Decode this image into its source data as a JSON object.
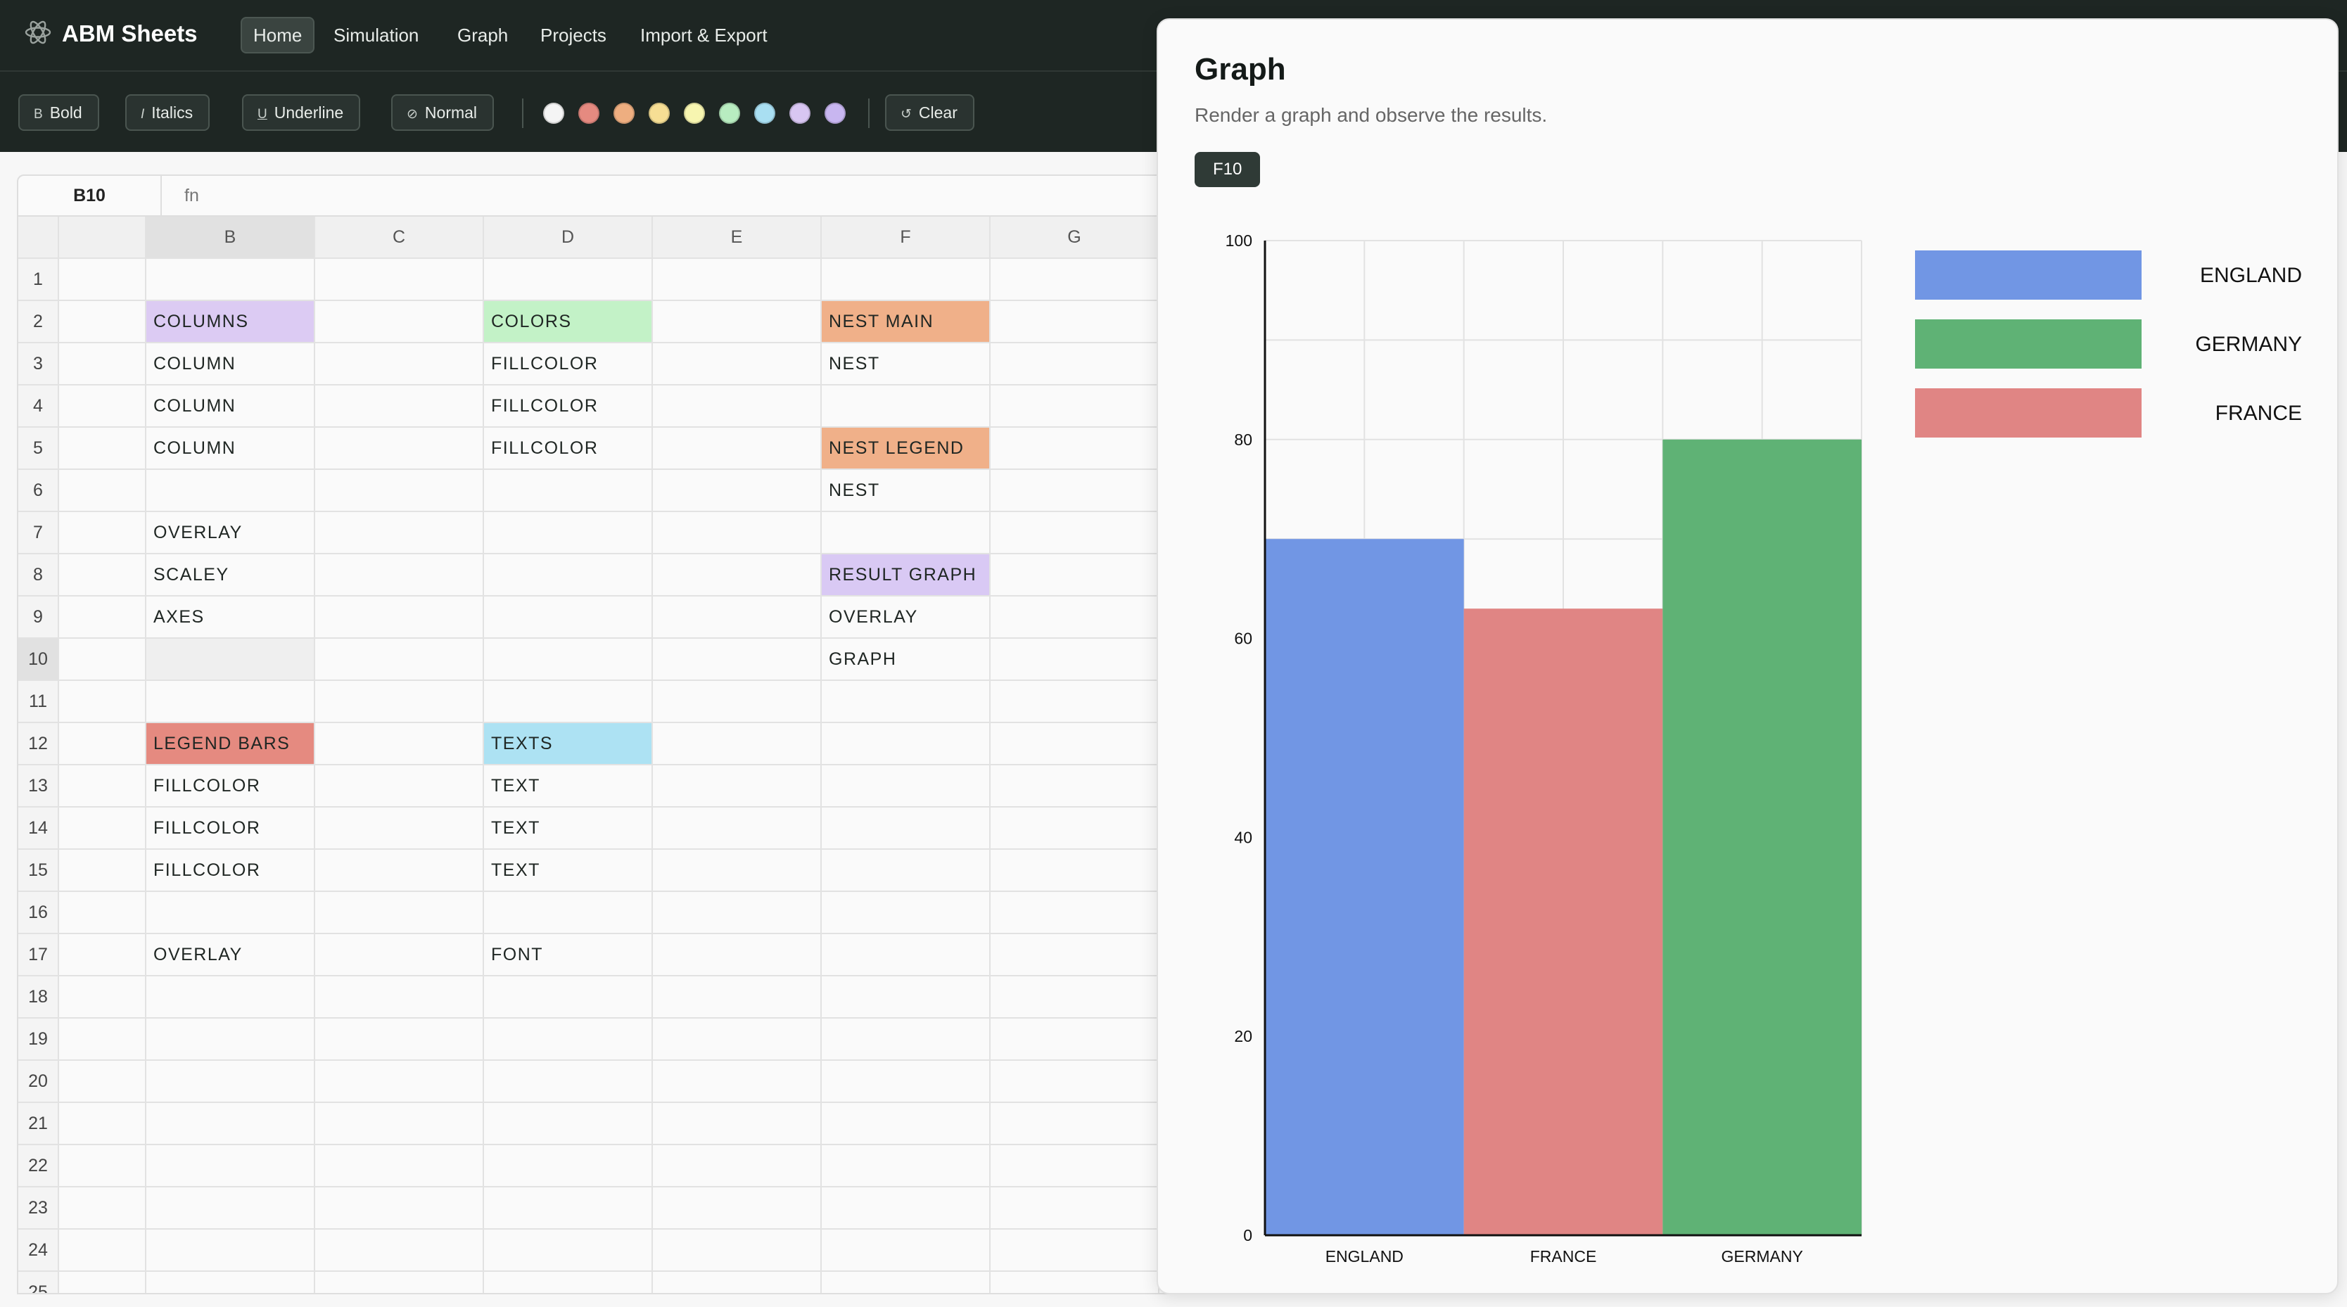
{
  "app": {
    "title": "ABM Sheets"
  },
  "nav": {
    "items": [
      {
        "label": "Home",
        "active": true
      },
      {
        "label": "Simulation",
        "active": false
      },
      {
        "label": "Graph",
        "active": false
      },
      {
        "label": "Projects",
        "active": false
      },
      {
        "label": "Import & Export",
        "active": false
      }
    ]
  },
  "toolbar": {
    "bold": "Bold",
    "italics": "Italics",
    "underline": "Underline",
    "normal": "Normal",
    "clear": "Clear",
    "swatches": [
      "#f4f4f4",
      "#e58a80",
      "#eeae80",
      "#f6de94",
      "#f7f5b0",
      "#b8ecc0",
      "#a9dff2",
      "#d8c6f2",
      "#c8b6f0"
    ]
  },
  "formula": {
    "cell": "B10",
    "fx": "fn"
  },
  "grid": {
    "columns": [
      "",
      "B",
      "C",
      "D",
      "E",
      "F",
      "G"
    ],
    "rows": [
      {
        "n": "1",
        "B": "",
        "D": "",
        "F": ""
      },
      {
        "n": "2",
        "B": "COLUMNS",
        "D": "COLORS",
        "F": "NEST MAIN"
      },
      {
        "n": "3",
        "B": "COLUMN",
        "D": "FILLCOLOR",
        "F": "NEST"
      },
      {
        "n": "4",
        "B": "COLUMN",
        "D": "FILLCOLOR",
        "F": ""
      },
      {
        "n": "5",
        "B": "COLUMN",
        "D": "FILLCOLOR",
        "F": "NEST LEGEND"
      },
      {
        "n": "6",
        "B": "",
        "D": "",
        "F": "NEST"
      },
      {
        "n": "7",
        "B": "OVERLAY",
        "D": "",
        "F": ""
      },
      {
        "n": "8",
        "B": "SCALEY",
        "D": "",
        "F": "RESULT GRAPH"
      },
      {
        "n": "9",
        "B": "AXES",
        "D": "",
        "F": "OVERLAY"
      },
      {
        "n": "10",
        "B": "",
        "D": "",
        "F": "GRAPH"
      },
      {
        "n": "11",
        "B": "",
        "D": "",
        "F": ""
      },
      {
        "n": "12",
        "B": "LEGEND BARS",
        "D": "TEXTS",
        "F": ""
      },
      {
        "n": "13",
        "B": "FILLCOLOR",
        "D": "TEXT",
        "F": ""
      },
      {
        "n": "14",
        "B": "FILLCOLOR",
        "D": "TEXT",
        "F": ""
      },
      {
        "n": "15",
        "B": "FILLCOLOR",
        "D": "TEXT",
        "F": ""
      },
      {
        "n": "16",
        "B": "",
        "D": "",
        "F": ""
      },
      {
        "n": "17",
        "B": "OVERLAY",
        "D": "FONT",
        "F": ""
      },
      {
        "n": "18",
        "B": "",
        "D": "",
        "F": ""
      },
      {
        "n": "19",
        "B": "",
        "D": "",
        "F": ""
      },
      {
        "n": "20",
        "B": "",
        "D": "",
        "F": ""
      },
      {
        "n": "21",
        "B": "",
        "D": "",
        "F": ""
      },
      {
        "n": "22",
        "B": "",
        "D": "",
        "F": ""
      },
      {
        "n": "23",
        "B": "",
        "D": "",
        "F": ""
      },
      {
        "n": "24",
        "B": "",
        "D": "",
        "F": ""
      },
      {
        "n": "25",
        "B": "",
        "D": "",
        "F": ""
      }
    ],
    "highlights": {
      "B2": "#dccbf3",
      "D2": "#c3f2c7",
      "F2": "#f0b089",
      "F5": "#f0b089",
      "F8": "#d9c9f4",
      "B12": "#e58a80",
      "D12": "#ade2f3"
    }
  },
  "panel": {
    "title": "Graph",
    "subtitle": "Render a graph and observe the results.",
    "cell_badge": "F10"
  },
  "chart_data": {
    "type": "bar",
    "categories": [
      "ENGLAND",
      "FRANCE",
      "GERMANY"
    ],
    "values": [
      70,
      63,
      80
    ],
    "colors": [
      "#7196e4",
      "#e08584",
      "#5fb275"
    ],
    "ylim": [
      0,
      100
    ],
    "yticks": [
      0,
      20,
      40,
      60,
      80,
      100
    ],
    "grid": true,
    "legend": {
      "placement": "right",
      "entries": [
        {
          "label": "ENGLAND",
          "color": "#7196e4"
        },
        {
          "label": "GERMANY",
          "color": "#5fb275"
        },
        {
          "label": "FRANCE",
          "color": "#e08584"
        }
      ]
    }
  }
}
